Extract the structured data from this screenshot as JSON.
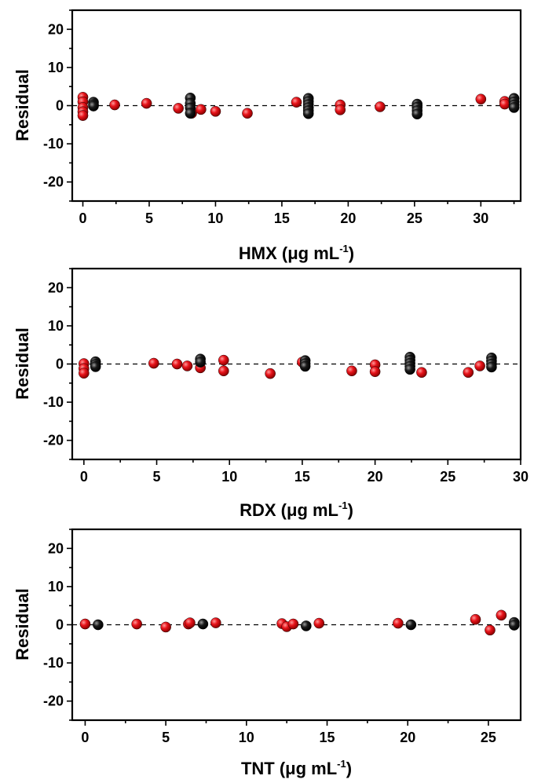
{
  "colors": {
    "series_a": "#e8141b",
    "series_b": "#111111",
    "axis": "#000000"
  },
  "chart_data": [
    {
      "type": "scatter",
      "xlabel": {
        "main": "HMX (μg mL",
        "sup": "-1",
        "close": ")"
      },
      "ylabel": "Residual",
      "xlim": [
        -0.8,
        33
      ],
      "ylim": [
        -25,
        25
      ],
      "xticks": [
        0,
        5,
        10,
        15,
        20,
        25,
        30
      ],
      "yticks": [
        20,
        10,
        0,
        -10,
        -20
      ],
      "zero_line": "dashed",
      "series": [
        {
          "color": "#e8141b",
          "points": [
            [
              0,
              2.2
            ],
            [
              0,
              1.0
            ],
            [
              0,
              -0.5
            ],
            [
              0,
              -1.6
            ],
            [
              0,
              -2.6
            ],
            [
              2.4,
              0.2
            ],
            [
              4.8,
              0.6
            ],
            [
              7.2,
              -0.7
            ],
            [
              8.2,
              -2.0
            ],
            [
              8.9,
              -1.0
            ],
            [
              10,
              -1.5
            ],
            [
              12.4,
              -2.0
            ],
            [
              16.1,
              0.9
            ],
            [
              19.4,
              0.2
            ],
            [
              19.4,
              -1.1
            ],
            [
              22.4,
              -0.3
            ],
            [
              30,
              1.7
            ],
            [
              31.8,
              1.1
            ],
            [
              31.8,
              0.4
            ]
          ]
        },
        {
          "color": "#111111",
          "points": [
            [
              0.8,
              0.9
            ],
            [
              0.8,
              0.3
            ],
            [
              0.8,
              -0.1
            ],
            [
              8.1,
              2.0
            ],
            [
              8.1,
              0.6
            ],
            [
              8.1,
              -0.6
            ],
            [
              8.1,
              -2.0
            ],
            [
              17,
              1.9
            ],
            [
              17,
              1.1
            ],
            [
              17,
              0.3
            ],
            [
              17,
              -0.5
            ],
            [
              17,
              -1.3
            ],
            [
              17,
              -2.1
            ],
            [
              25.2,
              0.4
            ],
            [
              25.2,
              -0.4
            ],
            [
              25.2,
              -1.3
            ],
            [
              25.2,
              -2.2
            ],
            [
              32.5,
              1.9
            ],
            [
              32.5,
              1.0
            ],
            [
              32.5,
              0.2
            ],
            [
              32.5,
              -0.5
            ]
          ]
        }
      ]
    },
    {
      "type": "scatter",
      "xlabel": {
        "main": "RDX (μg mL",
        "sup": "-1",
        "close": ")"
      },
      "ylabel": "Residual",
      "xlim": [
        -0.8,
        30
      ],
      "ylim": [
        -25,
        25
      ],
      "xticks": [
        0,
        5,
        10,
        15,
        20,
        25,
        30
      ],
      "yticks": [
        20,
        10,
        0,
        -10,
        -20
      ],
      "zero_line": "dashed",
      "series": [
        {
          "color": "#e8141b",
          "points": [
            [
              0,
              0.1
            ],
            [
              0,
              -1.2
            ],
            [
              0,
              -2.4
            ],
            [
              4.8,
              0.2
            ],
            [
              6.4,
              0.0
            ],
            [
              7.1,
              -0.5
            ],
            [
              8.0,
              -1.0
            ],
            [
              9.6,
              1.0
            ],
            [
              9.6,
              -1.8
            ],
            [
              12.8,
              -2.5
            ],
            [
              15.0,
              0.5
            ],
            [
              18.4,
              -1.8
            ],
            [
              20,
              -0.2
            ],
            [
              20,
              -2.0
            ],
            [
              23.2,
              -2.2
            ],
            [
              26.4,
              -2.2
            ],
            [
              27.2,
              -0.5
            ]
          ]
        },
        {
          "color": "#111111",
          "points": [
            [
              0.8,
              0.6
            ],
            [
              0.8,
              -0.1
            ],
            [
              0.8,
              -0.7
            ],
            [
              8.0,
              1.3
            ],
            [
              8.0,
              0.5
            ],
            [
              15.2,
              0.9
            ],
            [
              15.2,
              0.1
            ],
            [
              15.2,
              -0.6
            ],
            [
              22.4,
              1.8
            ],
            [
              22.4,
              1.0
            ],
            [
              22.4,
              0.2
            ],
            [
              22.4,
              -0.6
            ],
            [
              22.4,
              -1.4
            ],
            [
              28.0,
              1.6
            ],
            [
              28.0,
              0.8
            ],
            [
              28.0,
              0.0
            ],
            [
              28.0,
              -0.8
            ]
          ]
        }
      ]
    },
    {
      "type": "scatter",
      "xlabel": {
        "main": "TNT (μg mL",
        "sup": "-1",
        "close": ")"
      },
      "ylabel": "Residual",
      "xlim": [
        -0.8,
        27
      ],
      "ylim": [
        -25,
        25
      ],
      "xticks": [
        0,
        5,
        10,
        15,
        20,
        25
      ],
      "yticks": [
        20,
        10,
        0,
        -10,
        -20
      ],
      "zero_line": "dashed",
      "series": [
        {
          "color": "#e8141b",
          "points": [
            [
              0,
              0.2
            ],
            [
              3.2,
              0.2
            ],
            [
              5.0,
              -0.6
            ],
            [
              6.4,
              0.2
            ],
            [
              6.5,
              0.5
            ],
            [
              8.1,
              0.5
            ],
            [
              12.2,
              0.3
            ],
            [
              12.5,
              -0.5
            ],
            [
              12.9,
              0.2
            ],
            [
              14.5,
              0.4
            ],
            [
              19.4,
              0.4
            ],
            [
              24.2,
              1.4
            ],
            [
              25.1,
              -1.4
            ],
            [
              25.8,
              2.5
            ]
          ]
        },
        {
          "color": "#111111",
          "points": [
            [
              0.8,
              0.0
            ],
            [
              7.3,
              0.2
            ],
            [
              13.7,
              -0.3
            ],
            [
              20.2,
              0.0
            ],
            [
              26.6,
              0.6
            ],
            [
              26.6,
              -0.1
            ]
          ]
        }
      ]
    }
  ]
}
